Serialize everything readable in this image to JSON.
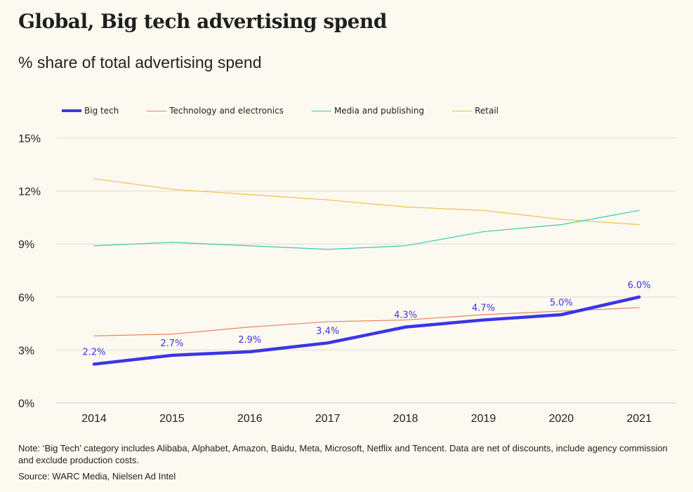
{
  "header": {
    "title": "Global, Big tech advertising spend",
    "subtitle": "% share of total advertising spend"
  },
  "footer": {
    "note": "Note: ‘Big Tech’ category includes Alibaba, Alphabet, Amazon, Baidu, Meta, Microsoft, Netflix and Tencent. Data are net of discounts, include agency commission and exclude production costs.",
    "source": "Source: WARC Media, Nielsen Ad Intel"
  },
  "chart_data": {
    "type": "line",
    "title": "Global, Big tech advertising spend",
    "subtitle": "% share of total advertising spend",
    "x": [
      "2014",
      "2015",
      "2016",
      "2017",
      "2018",
      "2019",
      "2020",
      "2021"
    ],
    "ylim": [
      0,
      15
    ],
    "yticks": [
      0,
      3,
      6,
      9,
      12,
      15
    ],
    "ytick_labels": [
      "0%",
      "3%",
      "6%",
      "9%",
      "12%",
      "15%"
    ],
    "grid": true,
    "legend": "top-left",
    "series": [
      {
        "name": "Big tech",
        "color": "#3b35e6",
        "values": [
          2.2,
          2.7,
          2.9,
          3.4,
          4.3,
          4.7,
          5.0,
          6.0
        ],
        "labels": [
          "2.2%",
          "2.7%",
          "2.9%",
          "3.4%",
          "4.3%",
          "4.7%",
          "5.0%",
          "6.0%"
        ]
      },
      {
        "name": "Technology and electronics",
        "color": "#e8845e",
        "values": [
          3.8,
          3.9,
          4.3,
          4.6,
          4.7,
          5.0,
          5.2,
          5.4
        ]
      },
      {
        "name": "Media and publishing",
        "color": "#3cc9b3",
        "values": [
          8.9,
          9.1,
          8.9,
          8.7,
          8.9,
          9.7,
          10.1,
          10.9
        ]
      },
      {
        "name": "Retail",
        "color": "#e9c34b",
        "values": [
          12.7,
          12.1,
          11.8,
          11.5,
          11.1,
          10.9,
          10.4,
          10.1
        ]
      }
    ]
  }
}
